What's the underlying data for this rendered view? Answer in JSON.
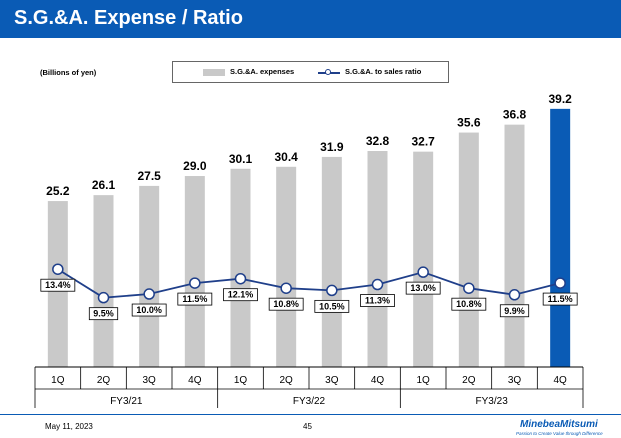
{
  "header": {
    "title": "S.G.&A. Expense / Ratio"
  },
  "footer": {
    "date": "May 11, 2023",
    "page": "45",
    "brand": "MinebeaMitsumi",
    "tagline": "Passion to Create Value through Difference"
  },
  "colors": {
    "title_bar": "#0a5bb5",
    "bar": "#c9c9c9",
    "bar_highlight": "#0a5bb5",
    "line": "#1f3f8a"
  },
  "chart_data": {
    "type": "bar",
    "unit_label": "(Billions of yen)",
    "categories": [
      "1Q",
      "2Q",
      "3Q",
      "4Q",
      "1Q",
      "2Q",
      "3Q",
      "4Q",
      "1Q",
      "2Q",
      "3Q",
      "4Q"
    ],
    "groups": [
      {
        "label": "FY3/21",
        "span": 4
      },
      {
        "label": "FY3/22",
        "span": 4
      },
      {
        "label": "FY3/23",
        "span": 4
      }
    ],
    "series": [
      {
        "name": "S.G.&A. expenses",
        "kind": "bar",
        "values": [
          25.2,
          26.1,
          27.5,
          29.0,
          30.1,
          30.4,
          31.9,
          32.8,
          32.7,
          35.6,
          36.8,
          39.2
        ],
        "labels": [
          "25.2",
          "26.1",
          "27.5",
          "29.0",
          "30.1",
          "30.4",
          "31.9",
          "32.8",
          "32.7",
          "35.6",
          "36.8",
          "39.2"
        ],
        "highlight_index": 11
      },
      {
        "name": "S.G.&A. to sales ratio",
        "kind": "line",
        "values": [
          13.4,
          9.5,
          10.0,
          11.5,
          12.1,
          10.8,
          10.5,
          11.3,
          13.0,
          10.8,
          9.9,
          11.5
        ],
        "labels": [
          "13.4%",
          "9.5%",
          "10.0%",
          "11.5%",
          "12.1%",
          "10.8%",
          "10.5%",
          "11.3%",
          "13.0%",
          "10.8%",
          "9.9%",
          "11.5%"
        ]
      }
    ],
    "ylim_bar": [
      0,
      41
    ],
    "ylim_line": [
      0,
      37
    ]
  }
}
